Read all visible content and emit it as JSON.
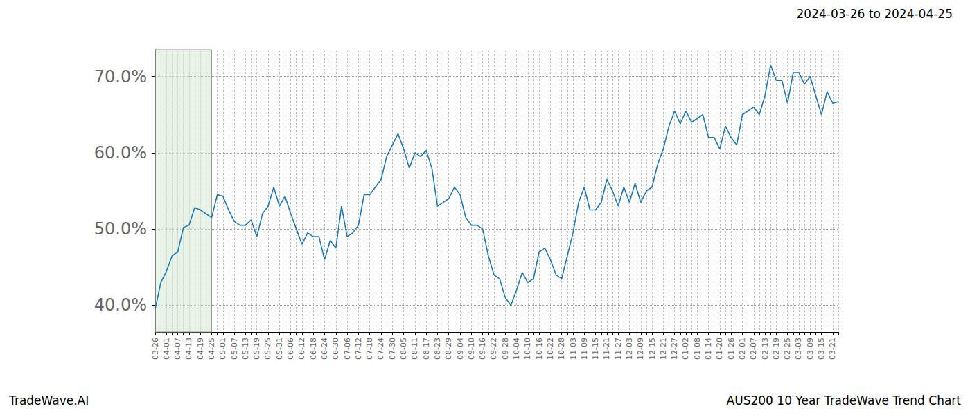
{
  "chart_data": {
    "type": "line",
    "title": "2024-03-26 to 2024-04-25",
    "annotations": [
      "TradeWave.AI",
      "AUS200 10 Year TradeWave Trend Chart"
    ],
    "highlight_range": [
      "03-26",
      "04-25"
    ],
    "categories": [
      "03-26",
      null,
      "04-01",
      null,
      "04-07",
      null,
      "04-13",
      null,
      "04-19",
      null,
      "04-25",
      null,
      "05-01",
      null,
      "05-07",
      null,
      "05-13",
      null,
      "05-19",
      null,
      "05-25",
      null,
      "05-31",
      null,
      "06-06",
      null,
      "06-12",
      null,
      "06-18",
      null,
      "06-24",
      null,
      "06-30",
      null,
      "07-06",
      null,
      "07-12",
      null,
      "07-18",
      null,
      "07-24",
      null,
      "07-30",
      null,
      "08-05",
      null,
      "08-11",
      null,
      "08-17",
      null,
      "08-23",
      null,
      "08-29",
      null,
      "09-04",
      null,
      "09-10",
      null,
      "09-16",
      null,
      "09-22",
      null,
      "09-28",
      null,
      "10-04",
      null,
      "10-10",
      null,
      "10-16",
      null,
      "10-22",
      null,
      "10-28",
      null,
      "11-03",
      null,
      "11-09",
      null,
      "11-15",
      null,
      "11-21",
      null,
      "11-27",
      null,
      "12-03",
      null,
      "12-09",
      null,
      "12-15",
      null,
      "12-21",
      null,
      "12-27",
      null,
      "01-02",
      null,
      "01-08",
      null,
      "01-14",
      null,
      "01-20",
      null,
      "01-26",
      null,
      "02-01",
      null,
      "02-07",
      null,
      "02-13",
      null,
      "02-19",
      null,
      "02-25",
      null,
      "03-03",
      null,
      "03-09",
      null,
      "03-15",
      null,
      "03-21",
      null
    ],
    "values": [
      39.5,
      43,
      44.5,
      46.5,
      47,
      50.2,
      50.5,
      52.8,
      52.5,
      52,
      51.5,
      54.5,
      54.3,
      52.5,
      51,
      50.5,
      50.5,
      51.2,
      49,
      52,
      53,
      55.5,
      53,
      54.3,
      52,
      50,
      48,
      49.5,
      49,
      49,
      46,
      48.5,
      47.5,
      53,
      49,
      49.5,
      50.5,
      54.5,
      54.5,
      55.5,
      56.5,
      59.5,
      61,
      62.5,
      60.5,
      58,
      60,
      59.5,
      60.3,
      58,
      53,
      53.5,
      54,
      55.5,
      54.5,
      51.5,
      50.5,
      50.5,
      50,
      46.5,
      44,
      43.5,
      41,
      40,
      42,
      44.3,
      43,
      43.5,
      47,
      47.5,
      46,
      44,
      43.5,
      46.5,
      49.5,
      53.5,
      55.5,
      52.5,
      52.5,
      53.5,
      56.5,
      55,
      53,
      55.5,
      53.5,
      56,
      53.5,
      55,
      55.5,
      58.5,
      60.5,
      63.5,
      65.5,
      63.8,
      65.5,
      64,
      64.5,
      65,
      62,
      62,
      60.5,
      63.5,
      62,
      61,
      65,
      65.5,
      66,
      65,
      67.5,
      71.5,
      69.5,
      69.5,
      66.5,
      70.5,
      70.5,
      69,
      70,
      67.5,
      65,
      68,
      66.5,
      66.7
    ],
    "color": "#1f77b4",
    "ylim": [
      36.5,
      73.5
    ],
    "yticks": [
      {
        "value": 40,
        "label": "40.0%"
      },
      {
        "value": 50,
        "label": "50.0%"
      },
      {
        "value": 60,
        "label": "60.0%"
      },
      {
        "value": 70,
        "label": "70.0%"
      }
    ],
    "grid": true
  }
}
